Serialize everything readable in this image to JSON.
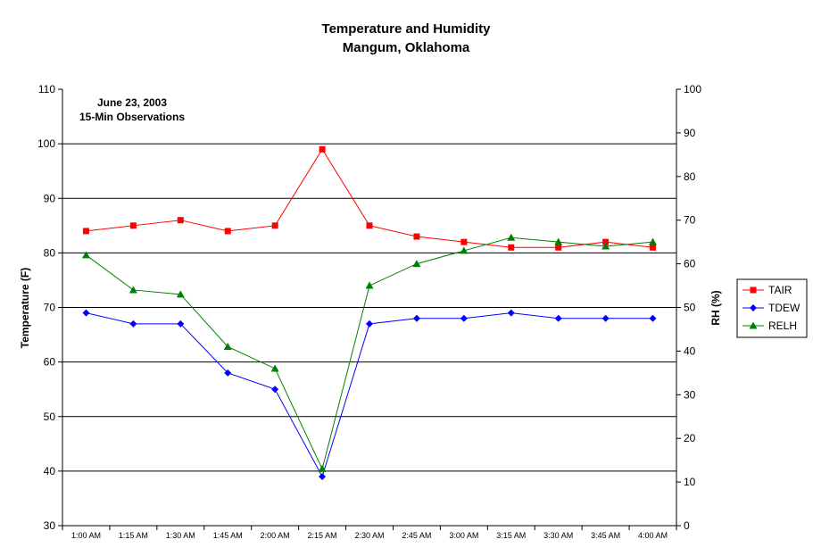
{
  "chart_data": {
    "type": "line",
    "title": "Temperature and Humidity",
    "subtitle": "Mangum, Oklahoma",
    "annotation_lines": [
      "June 23, 2003",
      "15-Min Observations"
    ],
    "ylabel": "Temperature (F)",
    "y2label": "RH (%)",
    "ylim": [
      30,
      110
    ],
    "y2lim": [
      0,
      100
    ],
    "y_ticks": [
      "30",
      "40",
      "50",
      "60",
      "70",
      "80",
      "90",
      "100",
      "110"
    ],
    "y2_ticks": [
      "0",
      "10",
      "20",
      "30",
      "40",
      "50",
      "60",
      "70",
      "80",
      "90",
      "100"
    ],
    "grid": true,
    "legend_position": "right",
    "categories": [
      "1:00 AM",
      "1:15 AM",
      "1:30 AM",
      "1:45 AM",
      "2:00 AM",
      "2:15 AM",
      "2:30 AM",
      "2:45 AM",
      "3:00 AM",
      "3:15 AM",
      "3:30 AM",
      "3:45 AM",
      "4:00 AM"
    ],
    "series": [
      {
        "name": "TAIR",
        "axis": "left",
        "color": "#ff0000",
        "marker": "square",
        "values": [
          84,
          85,
          86,
          84,
          85,
          99,
          85,
          83,
          82,
          81,
          81,
          82,
          81
        ]
      },
      {
        "name": "TDEW",
        "axis": "left",
        "color": "#0000ff",
        "marker": "diamond",
        "values": [
          69,
          67,
          67,
          58,
          55,
          39,
          67,
          68,
          68,
          69,
          68,
          68,
          68
        ]
      },
      {
        "name": "RELH",
        "axis": "right",
        "color": "#008000",
        "marker": "triangle",
        "values": [
          62,
          54,
          53,
          41,
          36,
          13,
          55,
          60,
          63,
          66,
          65,
          64,
          65
        ]
      }
    ]
  }
}
